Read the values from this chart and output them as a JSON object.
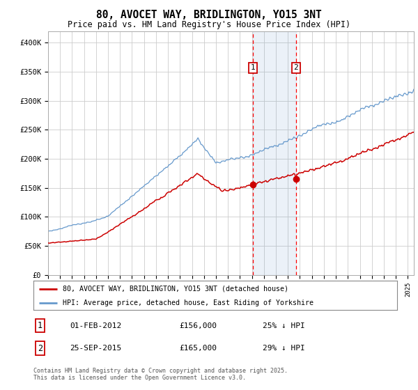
{
  "title": "80, AVOCET WAY, BRIDLINGTON, YO15 3NT",
  "subtitle": "Price paid vs. HM Land Registry's House Price Index (HPI)",
  "ylim": [
    0,
    420000
  ],
  "yticks": [
    0,
    50000,
    100000,
    150000,
    200000,
    250000,
    300000,
    350000,
    400000
  ],
  "ytick_labels": [
    "£0",
    "£50K",
    "£100K",
    "£150K",
    "£200K",
    "£250K",
    "£300K",
    "£350K",
    "£400K"
  ],
  "hpi_color": "#6699cc",
  "price_color": "#cc0000",
  "sale1_date_t": 2012.083,
  "sale1_price": 156000,
  "sale2_date_t": 2015.667,
  "sale2_price": 165000,
  "sale1_date": "01-FEB-2012",
  "sale1_price_str": "£156,000",
  "sale1_hpi": "25% ↓ HPI",
  "sale2_date": "25-SEP-2015",
  "sale2_price_str": "£165,000",
  "sale2_hpi": "29% ↓ HPI",
  "legend_line1": "80, AVOCET WAY, BRIDLINGTON, YO15 3NT (detached house)",
  "legend_line2": "HPI: Average price, detached house, East Riding of Yorkshire",
  "footnote": "Contains HM Land Registry data © Crown copyright and database right 2025.\nThis data is licensed under the Open Government Licence v3.0.",
  "background_color": "#ffffff",
  "grid_color": "#cccccc",
  "xlim_start": 1995,
  "xlim_end": 2025.5
}
